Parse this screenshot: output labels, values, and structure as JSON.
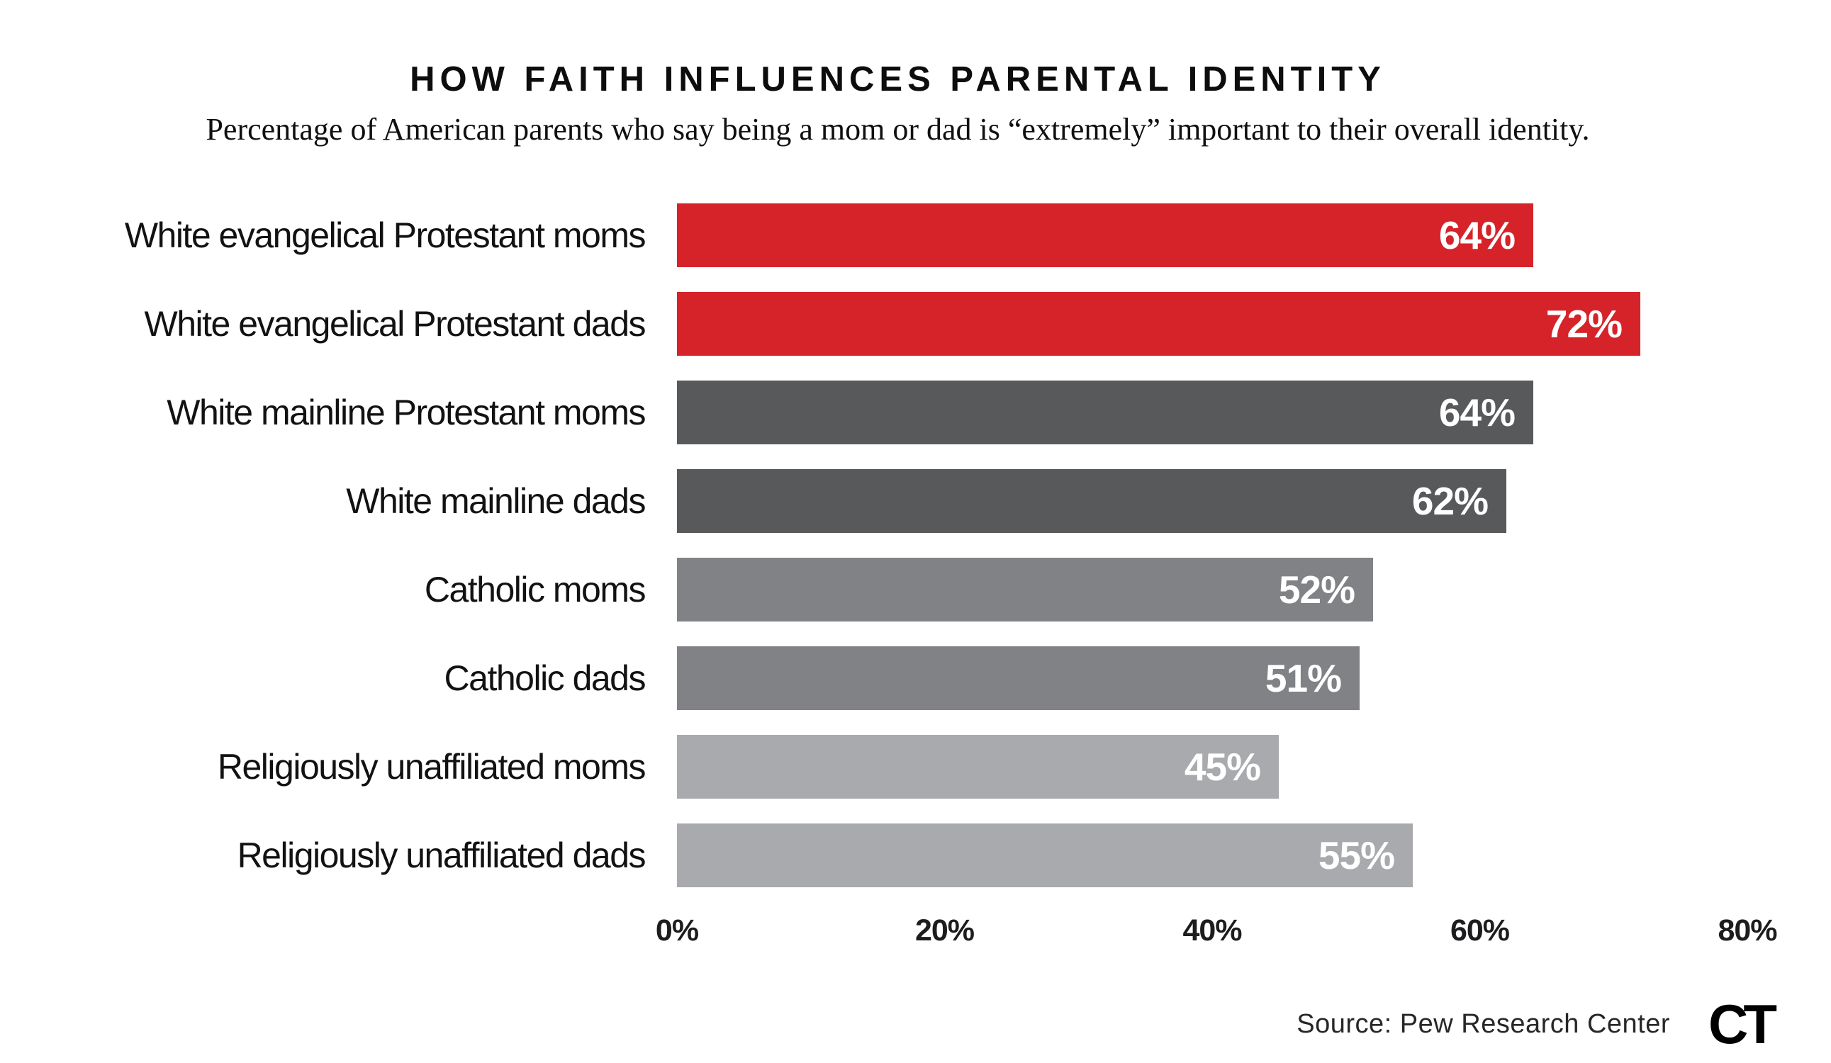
{
  "title": "HOW FAITH INFLUENCES PARENTAL IDENTITY",
  "subtitle": "Percentage of American parents who say being a mom or dad is “extremely” important to their overall identity.",
  "footer": {
    "source": "Source: Pew Research Center",
    "logo_text": "CT"
  },
  "colors": {
    "red": "#D6232A",
    "dark_gray": "#58595B",
    "medium_gray": "#808285",
    "light_gray": "#A9AAAD",
    "value_text": "#FFFFFF",
    "text": "#131313",
    "background": "#FFFFFF"
  },
  "chart_data": {
    "type": "bar",
    "orientation": "horizontal",
    "title": "HOW FAITH INFLUENCES PARENTAL IDENTITY",
    "subtitle": "Percentage of American parents who say being a mom or dad is “extremely” important to their overall identity.",
    "categories": [
      "White evangelical Protestant moms",
      "White evangelical Protestant dads",
      "White mainline Protestant moms",
      "White mainline dads",
      "Catholic moms",
      "Catholic dads",
      "Religiously unaffiliated moms",
      "Religiously unaffiliated dads"
    ],
    "values": [
      64,
      72,
      64,
      62,
      52,
      51,
      45,
      55
    ],
    "value_labels": [
      "64%",
      "72%",
      "64%",
      "62%",
      "52%",
      "51%",
      "45%",
      "55%"
    ],
    "bar_colors": [
      "#D6232A",
      "#D6232A",
      "#58595B",
      "#58595B",
      "#808285",
      "#808285",
      "#A9AAAD",
      "#A9AAAD"
    ],
    "xlabel": "",
    "ylabel": "",
    "xlim": [
      0,
      80
    ],
    "x_ticks": [
      "0%",
      "20%",
      "40%",
      "60%",
      "80%"
    ],
    "grid": false,
    "legend": "none",
    "value_label_position": "inside-right",
    "source": "Source: Pew Research Center"
  }
}
